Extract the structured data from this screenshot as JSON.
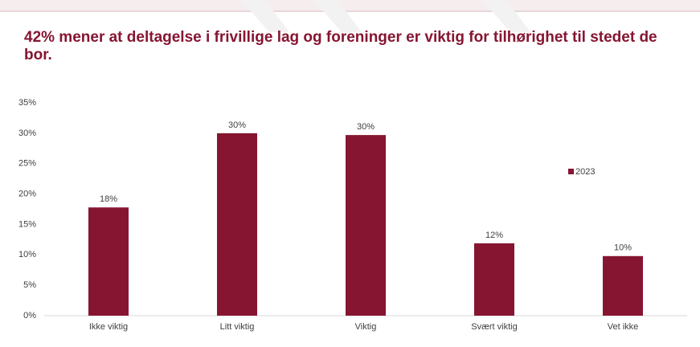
{
  "chart_data": {
    "type": "bar",
    "title": "42% mener at deltagelse i frivillige lag og foreninger er viktig for tilhørighet til stedet de bor.",
    "categories": [
      "Ikke viktig",
      "Litt viktig",
      "Viktig",
      "Svært viktig",
      "Vet ikke"
    ],
    "series": [
      {
        "name": "2023",
        "color": "#861531",
        "values": [
          17.8,
          30,
          29.7,
          11.9,
          9.8
        ],
        "value_labels": [
          "18%",
          "30%",
          "30%",
          "12%",
          "10%"
        ]
      }
    ],
    "ylim": [
      0,
      35
    ],
    "yticks": [
      {
        "value": 0,
        "label": "0%"
      },
      {
        "value": 5,
        "label": "5%"
      },
      {
        "value": 10,
        "label": "10%"
      },
      {
        "value": 15,
        "label": "15%"
      },
      {
        "value": 20,
        "label": "20%"
      },
      {
        "value": 25,
        "label": "25%"
      },
      {
        "value": 30,
        "label": "30%"
      },
      {
        "value": 35,
        "label": "35%"
      }
    ],
    "grid": false,
    "legend": "right"
  }
}
